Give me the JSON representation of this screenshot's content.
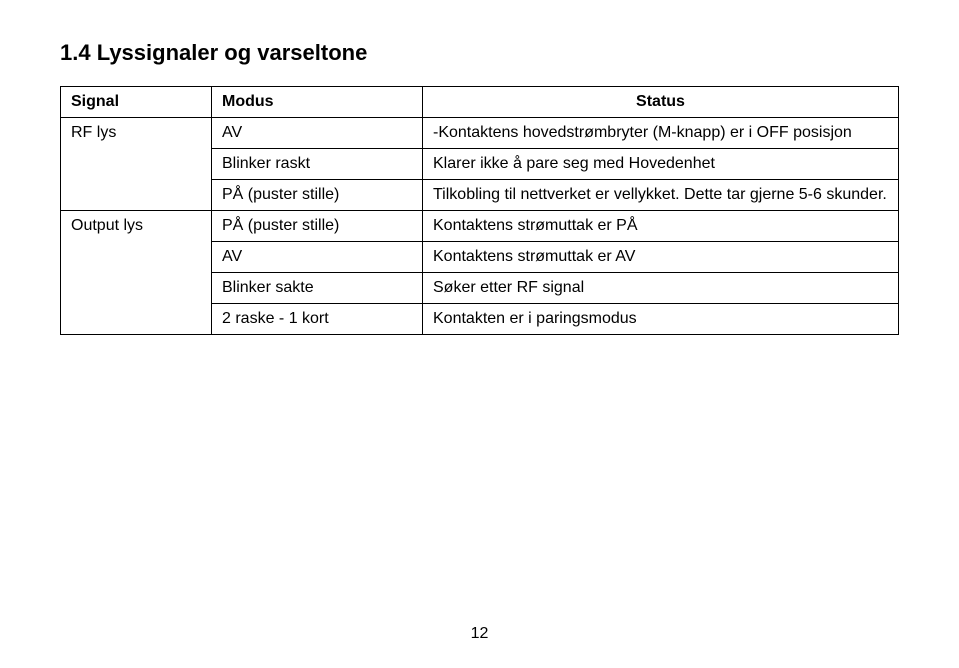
{
  "heading": "1.4  Lyssignaler og varseltone",
  "table": {
    "headers": {
      "signal": "Signal",
      "modus": "Modus",
      "status": "Status"
    },
    "rows": [
      {
        "signal": "RF lys",
        "modus": "AV",
        "status": "-Kontaktens hovedstrømbryter (M-knapp) er i OFF posisjon"
      },
      {
        "signal": "",
        "modus": "Blinker raskt",
        "status": "Klarer ikke å pare seg med Hovedenhet"
      },
      {
        "signal": "",
        "modus": "PÅ (puster stille)",
        "status": "Tilkobling til nettverket er vellykket.    Dette tar gjerne 5-6 skunder."
      },
      {
        "signal": "Output lys",
        "modus": "PÅ (puster stille)",
        "status": "Kontaktens strømuttak er PÅ"
      },
      {
        "signal": "",
        "modus": "AV",
        "status": "Kontaktens strømuttak er AV"
      },
      {
        "signal": "",
        "modus": "Blinker sakte",
        "status": "Søker etter RF signal"
      },
      {
        "signal": "",
        "modus": "2 raske - 1 kort",
        "status": "Kontakten er i paringsmodus"
      }
    ]
  },
  "pageNumber": "12"
}
